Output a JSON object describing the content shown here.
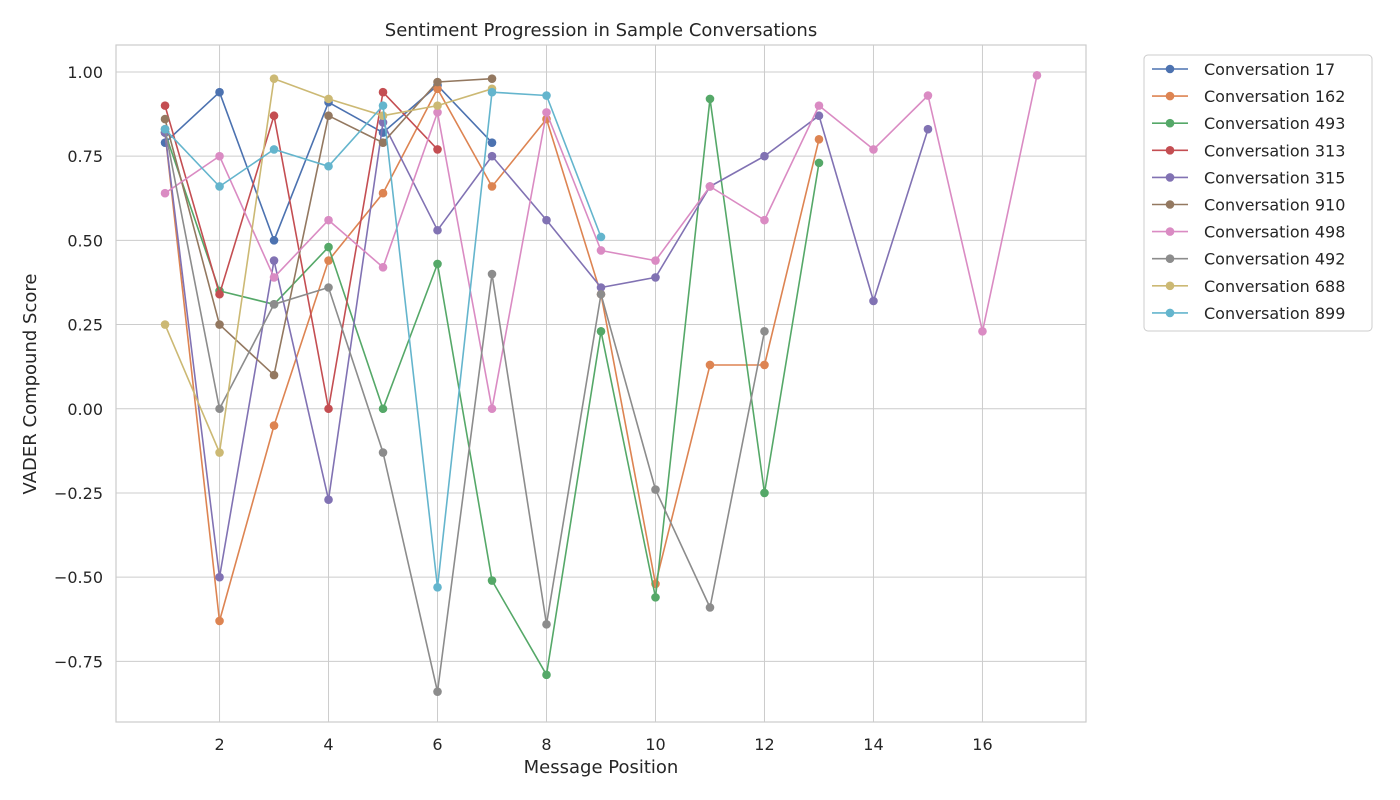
{
  "chart_data": {
    "type": "line",
    "title": "Sentiment Progression in Sample Conversations",
    "xlabel": "Message Position",
    "ylabel": "VADER Compound Score",
    "xlim": [
      0.1,
      17.9
    ],
    "ylim": [
      -0.93,
      1.08
    ],
    "xticks": [
      2,
      4,
      6,
      8,
      10,
      12,
      14,
      16
    ],
    "yticks": [
      -0.75,
      -0.5,
      -0.25,
      0.0,
      0.25,
      0.5,
      0.75,
      1.0
    ],
    "ytick_labels": [
      "−0.75",
      "−0.50",
      "−0.25",
      "0.00",
      "0.25",
      "0.50",
      "0.75",
      "1.00"
    ],
    "grid": true,
    "legend_position": "outside-top-right",
    "series": [
      {
        "name": "Conversation 17",
        "color": "#4c72b0",
        "x": [
          1,
          2,
          3,
          4,
          5,
          6,
          7
        ],
        "y": [
          0.79,
          0.94,
          0.5,
          0.91,
          0.82,
          0.96,
          0.79
        ]
      },
      {
        "name": "Conversation 162",
        "color": "#dd8452",
        "x": [
          1,
          2,
          3,
          4,
          5,
          6,
          7,
          8,
          9,
          10,
          11,
          12,
          13
        ],
        "y": [
          0.82,
          -0.63,
          -0.05,
          0.44,
          0.64,
          0.95,
          0.66,
          0.86,
          0.34,
          -0.52,
          0.13,
          0.13,
          0.8
        ]
      },
      {
        "name": "Conversation 493",
        "color": "#55a868",
        "x": [
          1,
          2,
          3,
          4,
          5,
          6,
          7,
          8,
          9,
          10,
          11,
          12,
          13
        ],
        "y": [
          0.82,
          0.35,
          0.31,
          0.48,
          0.0,
          0.43,
          -0.51,
          -0.79,
          0.23,
          -0.56,
          0.92,
          -0.25,
          0.73
        ]
      },
      {
        "name": "Conversation 313",
        "color": "#c44e52",
        "x": [
          1,
          2,
          3,
          4,
          5,
          6
        ],
        "y": [
          0.9,
          0.34,
          0.87,
          0.0,
          0.94,
          0.77
        ]
      },
      {
        "name": "Conversation 315",
        "color": "#8172b3",
        "x": [
          1,
          2,
          3,
          4,
          5,
          6,
          7,
          8,
          9,
          10,
          11,
          12,
          13,
          14,
          15
        ],
        "y": [
          0.82,
          -0.5,
          0.44,
          -0.27,
          0.85,
          0.53,
          0.75,
          0.56,
          0.36,
          0.39,
          0.66,
          0.75,
          0.87,
          0.32,
          0.83
        ]
      },
      {
        "name": "Conversation 910",
        "color": "#937860",
        "x": [
          1,
          2,
          3,
          4,
          5,
          6,
          7
        ],
        "y": [
          0.86,
          0.25,
          0.1,
          0.87,
          0.79,
          0.97,
          0.98
        ]
      },
      {
        "name": "Conversation 498",
        "color": "#da8bc3",
        "x": [
          1,
          2,
          3,
          4,
          5,
          6,
          7,
          8,
          9,
          10,
          11,
          12,
          13,
          14,
          15,
          16,
          17
        ],
        "y": [
          0.64,
          0.75,
          0.39,
          0.56,
          0.42,
          0.88,
          0.0,
          0.88,
          0.47,
          0.44,
          0.66,
          0.56,
          0.9,
          0.77,
          0.93,
          0.23,
          0.99
        ]
      },
      {
        "name": "Conversation 492",
        "color": "#8c8c8c",
        "x": [
          1,
          2,
          3,
          4,
          5,
          6,
          7,
          8,
          9,
          10,
          11,
          12
        ],
        "y": [
          0.83,
          0.0,
          0.31,
          0.36,
          -0.13,
          -0.84,
          0.4,
          -0.64,
          0.34,
          -0.24,
          -0.59,
          0.23
        ]
      },
      {
        "name": "Conversation 688",
        "color": "#ccb974",
        "x": [
          1,
          2,
          3,
          4,
          5,
          6,
          7
        ],
        "y": [
          0.25,
          -0.13,
          0.98,
          0.92,
          0.87,
          0.9,
          0.95
        ]
      },
      {
        "name": "Conversation 899",
        "color": "#64b5cd",
        "x": [
          1,
          2,
          3,
          4,
          5,
          6,
          7,
          8,
          9
        ],
        "y": [
          0.83,
          0.66,
          0.77,
          0.72,
          0.9,
          -0.53,
          0.94,
          0.93,
          0.51
        ]
      }
    ]
  }
}
